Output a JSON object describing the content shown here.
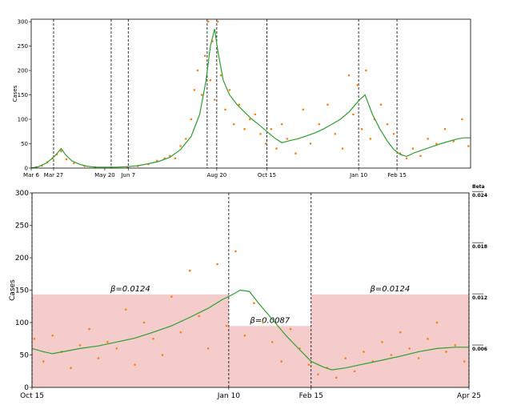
{
  "chart_data": [
    {
      "type": "line",
      "ylabel": "Cases",
      "xlim": [
        0,
        412
      ],
      "ylim": [
        0,
        305
      ],
      "xticks": [
        {
          "value": 0,
          "label": "Mar 6"
        },
        {
          "value": 21,
          "label": "Mar 27"
        },
        {
          "value": 69,
          "label": "May 20"
        },
        {
          "value": 91,
          "label": "Jun 7"
        },
        {
          "value": 174,
          "label": "Aug 20"
        },
        {
          "value": 221,
          "label": "Oct 15"
        },
        {
          "value": 307,
          "label": "Jan 10"
        },
        {
          "value": 343,
          "label": "Feb 15"
        }
      ],
      "yticks": [
        0,
        50,
        100,
        150,
        200,
        250,
        300
      ],
      "vlines": [
        21,
        75,
        91,
        165,
        174,
        221,
        307,
        343
      ],
      "series": [
        {
          "type": "scatter",
          "color": "#ff7f0e",
          "x": [
            5,
            10,
            15,
            20,
            24,
            28,
            33,
            40,
            50,
            60,
            75,
            90,
            100,
            110,
            118,
            125,
            130,
            135,
            140,
            145,
            150,
            153,
            156,
            160,
            163,
            166,
            168,
            170,
            172,
            175,
            178,
            182,
            186,
            190,
            195,
            200,
            205,
            210,
            215,
            220,
            225,
            230,
            235,
            240,
            248,
            255,
            262,
            270,
            278,
            285,
            292,
            298,
            302,
            306,
            310,
            314,
            318,
            322,
            328,
            334,
            340,
            346,
            352,
            358,
            365,
            372,
            380,
            388,
            396,
            404,
            410
          ],
          "values": [
            2,
            5,
            12,
            20,
            28,
            35,
            18,
            10,
            4,
            2,
            1,
            2,
            4,
            8,
            15,
            20,
            25,
            20,
            45,
            60,
            100,
            160,
            200,
            150,
            230,
            300,
            180,
            260,
            140,
            300,
            190,
            120,
            160,
            90,
            130,
            80,
            100,
            110,
            70,
            50,
            80,
            40,
            90,
            60,
            30,
            120,
            50,
            90,
            130,
            70,
            40,
            190,
            110,
            170,
            80,
            200,
            60,
            100,
            130,
            90,
            70,
            30,
            20,
            40,
            25,
            60,
            50,
            80,
            55,
            100,
            45
          ]
        },
        {
          "type": "line",
          "color": "#2ca02c",
          "x": [
            0,
            7,
            14,
            21,
            25,
            28,
            32,
            38,
            45,
            52,
            60,
            70,
            80,
            91,
            100,
            110,
            120,
            130,
            140,
            150,
            158,
            164,
            168,
            172,
            175,
            180,
            186,
            193,
            200,
            207,
            214,
            221,
            228,
            235,
            242,
            250,
            258,
            266,
            274,
            282,
            290,
            298,
            304,
            308,
            313,
            320,
            327,
            334,
            340,
            346,
            352,
            360,
            368,
            376,
            384,
            392,
            400,
            406,
            412
          ],
          "values": [
            0,
            3,
            10,
            22,
            32,
            40,
            28,
            15,
            8,
            4,
            2,
            2,
            2,
            3,
            5,
            9,
            14,
            22,
            38,
            65,
            110,
            180,
            250,
            285,
            240,
            180,
            150,
            130,
            115,
            100,
            88,
            75,
            62,
            52,
            56,
            60,
            66,
            72,
            80,
            90,
            100,
            115,
            130,
            140,
            150,
            110,
            80,
            55,
            38,
            28,
            24,
            32,
            38,
            44,
            50,
            55,
            60,
            62,
            62
          ]
        }
      ]
    },
    {
      "type": "line",
      "ylabel": "Cases",
      "y2label": "Beta",
      "xlim": [
        221,
        412
      ],
      "ylim": [
        0,
        300
      ],
      "y2lim": [
        0.0015,
        0.0243
      ],
      "xticks": [
        {
          "value": 221,
          "label": "Oct 15"
        },
        {
          "value": 307,
          "label": "Jan 10"
        },
        {
          "value": 343,
          "label": "Feb 15"
        },
        {
          "value": 412,
          "label": "Apr 25"
        }
      ],
      "yticks": [
        0,
        50,
        100,
        150,
        200,
        250,
        300
      ],
      "y2ticks": [
        0.006,
        0.012,
        0.018,
        0.024
      ],
      "vlines": [
        221,
        307,
        343,
        412
      ],
      "regions": [
        {
          "start": 221,
          "end": 307,
          "value": 0.0124,
          "label": "β=0.0124"
        },
        {
          "start": 307,
          "end": 343,
          "value": 0.0087,
          "label": "β=0.0087"
        },
        {
          "start": 343,
          "end": 412,
          "value": 0.0124,
          "label": "β=0.0124"
        }
      ],
      "region_color": "#f4cccc",
      "series": [
        {
          "type": "scatter",
          "color": "#ff7f0e",
          "x": [
            222,
            226,
            230,
            234,
            238,
            242,
            246,
            250,
            254,
            258,
            262,
            266,
            270,
            274,
            278,
            282,
            286,
            290,
            294,
            298,
            302,
            306,
            310,
            314,
            318,
            322,
            326,
            330,
            334,
            338,
            342,
            346,
            350,
            354,
            358,
            362,
            366,
            370,
            374,
            378,
            382,
            386,
            390,
            394,
            398,
            402,
            406,
            410
          ],
          "values": [
            75,
            40,
            80,
            55,
            30,
            65,
            90,
            45,
            70,
            60,
            120,
            35,
            100,
            75,
            50,
            140,
            85,
            180,
            110,
            60,
            190,
            95,
            210,
            80,
            130,
            100,
            70,
            40,
            90,
            60,
            35,
            20,
            30,
            15,
            45,
            25,
            55,
            40,
            70,
            50,
            85,
            60,
            45,
            75,
            100,
            55,
            65,
            40
          ]
        },
        {
          "type": "line",
          "color": "#2ca02c",
          "x": [
            221,
            226,
            230,
            236,
            242,
            250,
            258,
            266,
            274,
            282,
            290,
            298,
            304,
            308,
            312,
            316,
            320,
            326,
            332,
            338,
            343,
            348,
            352,
            358,
            366,
            374,
            382,
            390,
            398,
            406,
            412
          ],
          "values": [
            60,
            55,
            52,
            56,
            60,
            64,
            70,
            76,
            85,
            95,
            108,
            122,
            135,
            142,
            150,
            148,
            130,
            105,
            80,
            58,
            40,
            32,
            27,
            30,
            36,
            42,
            48,
            55,
            60,
            62,
            62
          ]
        }
      ]
    }
  ]
}
